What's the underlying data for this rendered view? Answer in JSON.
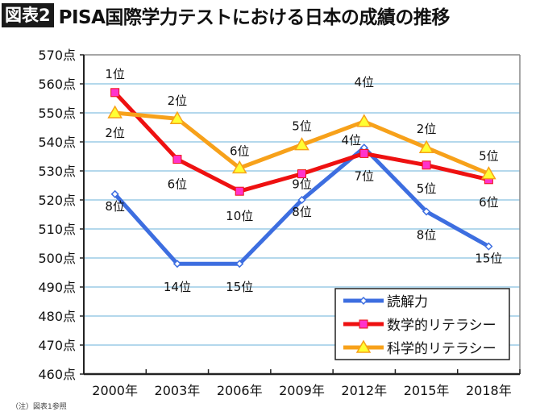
{
  "header": {
    "badge": "図表2",
    "title": "PISA国際学力テストにおける日本の成績の推移"
  },
  "note": "（注）図表1参照",
  "chart_data": {
    "type": "line",
    "categories": [
      "2000年",
      "2003年",
      "2006年",
      "2009年",
      "2012年",
      "2015年",
      "2018年"
    ],
    "ylim": [
      460,
      570
    ],
    "yticks": [
      460,
      470,
      480,
      490,
      500,
      510,
      520,
      530,
      540,
      550,
      560,
      570
    ],
    "ytick_suffix": "点",
    "grid": true,
    "legend_placement": "bottom-right",
    "series": [
      {
        "name": "読解力",
        "color": "#3d6ee0",
        "marker": "diamond",
        "values": [
          522,
          498,
          498,
          520,
          538,
          516,
          504
        ],
        "labels": [
          "8位",
          "14位",
          "15位",
          "8位",
          "4位",
          "8位",
          "15位"
        ]
      },
      {
        "name": "数学的リテラシー",
        "color": "#ee1111",
        "marker": "square",
        "marker_color": "#ff33cc",
        "values": [
          557,
          534,
          523,
          529,
          536,
          532,
          527
        ],
        "labels": [
          "1位",
          "6位",
          "10位",
          "9位",
          "7位",
          "5位",
          "6位"
        ]
      },
      {
        "name": "科学的リテラシー",
        "color": "#f7a11a",
        "marker": "triangle",
        "marker_color": "#ffff33",
        "values": [
          550,
          548,
          531,
          539,
          547,
          538,
          529
        ],
        "labels": [
          "2位",
          "2位",
          "6位",
          "5位",
          "4位",
          "2位",
          "5位"
        ]
      }
    ]
  }
}
